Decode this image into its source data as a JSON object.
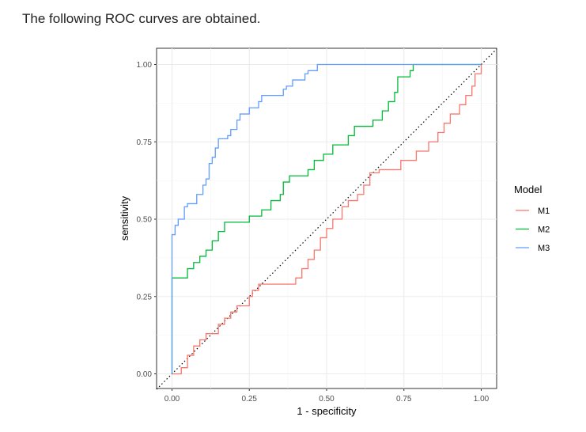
{
  "intro_text": "The following ROC curves are obtained.",
  "chart_data": {
    "type": "line",
    "title": "",
    "xlabel": "1 - specificity",
    "ylabel": "sensitivity",
    "xlim": [
      0,
      1
    ],
    "ylim": [
      0,
      1
    ],
    "x_ticks": [
      "0.00",
      "0.25",
      "0.50",
      "0.75",
      "1.00"
    ],
    "y_ticks": [
      "0.00",
      "0.25",
      "0.50",
      "0.75",
      "1.00"
    ],
    "grid": true,
    "diagonal_reference": true,
    "legend": {
      "title": "Model",
      "placement": "right"
    },
    "series": [
      {
        "name": "M1",
        "color": "#F8766D",
        "points": [
          [
            0,
            0
          ],
          [
            0.03,
            0
          ],
          [
            0.03,
            0.02
          ],
          [
            0.05,
            0.02
          ],
          [
            0.05,
            0.06
          ],
          [
            0.07,
            0.06
          ],
          [
            0.07,
            0.09
          ],
          [
            0.09,
            0.09
          ],
          [
            0.09,
            0.11
          ],
          [
            0.11,
            0.11
          ],
          [
            0.11,
            0.13
          ],
          [
            0.15,
            0.13
          ],
          [
            0.15,
            0.16
          ],
          [
            0.17,
            0.16
          ],
          [
            0.17,
            0.18
          ],
          [
            0.19,
            0.18
          ],
          [
            0.19,
            0.2
          ],
          [
            0.21,
            0.2
          ],
          [
            0.21,
            0.22
          ],
          [
            0.25,
            0.22
          ],
          [
            0.25,
            0.25
          ],
          [
            0.26,
            0.25
          ],
          [
            0.26,
            0.27
          ],
          [
            0.28,
            0.27
          ],
          [
            0.28,
            0.29
          ],
          [
            0.4,
            0.29
          ],
          [
            0.4,
            0.31
          ],
          [
            0.42,
            0.31
          ],
          [
            0.42,
            0.34
          ],
          [
            0.44,
            0.34
          ],
          [
            0.44,
            0.37
          ],
          [
            0.46,
            0.37
          ],
          [
            0.46,
            0.4
          ],
          [
            0.48,
            0.4
          ],
          [
            0.48,
            0.44
          ],
          [
            0.5,
            0.44
          ],
          [
            0.5,
            0.47
          ],
          [
            0.52,
            0.47
          ],
          [
            0.52,
            0.5
          ],
          [
            0.55,
            0.5
          ],
          [
            0.55,
            0.54
          ],
          [
            0.57,
            0.54
          ],
          [
            0.57,
            0.56
          ],
          [
            0.6,
            0.56
          ],
          [
            0.6,
            0.58
          ],
          [
            0.62,
            0.58
          ],
          [
            0.62,
            0.61
          ],
          [
            0.64,
            0.61
          ],
          [
            0.64,
            0.65
          ],
          [
            0.67,
            0.65
          ],
          [
            0.67,
            0.66
          ],
          [
            0.74,
            0.66
          ],
          [
            0.74,
            0.69
          ],
          [
            0.79,
            0.69
          ],
          [
            0.79,
            0.72
          ],
          [
            0.83,
            0.72
          ],
          [
            0.83,
            0.75
          ],
          [
            0.86,
            0.75
          ],
          [
            0.86,
            0.78
          ],
          [
            0.88,
            0.78
          ],
          [
            0.88,
            0.81
          ],
          [
            0.9,
            0.81
          ],
          [
            0.9,
            0.84
          ],
          [
            0.93,
            0.84
          ],
          [
            0.93,
            0.87
          ],
          [
            0.95,
            0.87
          ],
          [
            0.95,
            0.9
          ],
          [
            0.97,
            0.9
          ],
          [
            0.97,
            0.93
          ],
          [
            0.98,
            0.93
          ],
          [
            0.98,
            0.97
          ],
          [
            1,
            0.97
          ],
          [
            1,
            1
          ]
        ]
      },
      {
        "name": "M2",
        "color": "#00BA38",
        "points": [
          [
            0,
            0
          ],
          [
            0,
            0.31
          ],
          [
            0.05,
            0.31
          ],
          [
            0.05,
            0.34
          ],
          [
            0.07,
            0.34
          ],
          [
            0.07,
            0.36
          ],
          [
            0.09,
            0.36
          ],
          [
            0.09,
            0.38
          ],
          [
            0.11,
            0.38
          ],
          [
            0.11,
            0.4
          ],
          [
            0.13,
            0.4
          ],
          [
            0.13,
            0.43
          ],
          [
            0.15,
            0.43
          ],
          [
            0.15,
            0.46
          ],
          [
            0.17,
            0.46
          ],
          [
            0.17,
            0.49
          ],
          [
            0.25,
            0.49
          ],
          [
            0.25,
            0.51
          ],
          [
            0.29,
            0.51
          ],
          [
            0.29,
            0.53
          ],
          [
            0.32,
            0.53
          ],
          [
            0.32,
            0.56
          ],
          [
            0.35,
            0.56
          ],
          [
            0.35,
            0.58
          ],
          [
            0.36,
            0.58
          ],
          [
            0.36,
            0.62
          ],
          [
            0.38,
            0.62
          ],
          [
            0.38,
            0.64
          ],
          [
            0.44,
            0.64
          ],
          [
            0.44,
            0.66
          ],
          [
            0.46,
            0.66
          ],
          [
            0.46,
            0.69
          ],
          [
            0.49,
            0.69
          ],
          [
            0.49,
            0.71
          ],
          [
            0.52,
            0.71
          ],
          [
            0.52,
            0.74
          ],
          [
            0.57,
            0.74
          ],
          [
            0.57,
            0.77
          ],
          [
            0.59,
            0.77
          ],
          [
            0.59,
            0.8
          ],
          [
            0.65,
            0.8
          ],
          [
            0.65,
            0.82
          ],
          [
            0.68,
            0.82
          ],
          [
            0.68,
            0.85
          ],
          [
            0.7,
            0.85
          ],
          [
            0.7,
            0.88
          ],
          [
            0.72,
            0.88
          ],
          [
            0.72,
            0.91
          ],
          [
            0.73,
            0.91
          ],
          [
            0.73,
            0.96
          ],
          [
            0.77,
            0.96
          ],
          [
            0.77,
            0.98
          ],
          [
            0.78,
            0.98
          ],
          [
            0.78,
            1
          ],
          [
            1,
            1
          ]
        ]
      },
      {
        "name": "M3",
        "color": "#619CFF",
        "points": [
          [
            0,
            0
          ],
          [
            0,
            0.45
          ],
          [
            0.01,
            0.45
          ],
          [
            0.01,
            0.48
          ],
          [
            0.02,
            0.48
          ],
          [
            0.02,
            0.5
          ],
          [
            0.04,
            0.5
          ],
          [
            0.04,
            0.54
          ],
          [
            0.05,
            0.54
          ],
          [
            0.05,
            0.55
          ],
          [
            0.08,
            0.55
          ],
          [
            0.08,
            0.58
          ],
          [
            0.1,
            0.58
          ],
          [
            0.1,
            0.61
          ],
          [
            0.11,
            0.61
          ],
          [
            0.11,
            0.63
          ],
          [
            0.12,
            0.63
          ],
          [
            0.12,
            0.68
          ],
          [
            0.13,
            0.68
          ],
          [
            0.13,
            0.7
          ],
          [
            0.14,
            0.7
          ],
          [
            0.14,
            0.73
          ],
          [
            0.15,
            0.73
          ],
          [
            0.15,
            0.76
          ],
          [
            0.18,
            0.76
          ],
          [
            0.18,
            0.77
          ],
          [
            0.19,
            0.77
          ],
          [
            0.19,
            0.79
          ],
          [
            0.21,
            0.79
          ],
          [
            0.21,
            0.82
          ],
          [
            0.22,
            0.82
          ],
          [
            0.22,
            0.84
          ],
          [
            0.25,
            0.84
          ],
          [
            0.25,
            0.86
          ],
          [
            0.28,
            0.86
          ],
          [
            0.28,
            0.88
          ],
          [
            0.29,
            0.88
          ],
          [
            0.29,
            0.9
          ],
          [
            0.36,
            0.9
          ],
          [
            0.36,
            0.92
          ],
          [
            0.37,
            0.92
          ],
          [
            0.37,
            0.93
          ],
          [
            0.39,
            0.93
          ],
          [
            0.39,
            0.95
          ],
          [
            0.43,
            0.95
          ],
          [
            0.43,
            0.97
          ],
          [
            0.44,
            0.97
          ],
          [
            0.44,
            0.98
          ],
          [
            0.47,
            0.98
          ],
          [
            0.47,
            1
          ],
          [
            1,
            1
          ]
        ]
      }
    ]
  }
}
